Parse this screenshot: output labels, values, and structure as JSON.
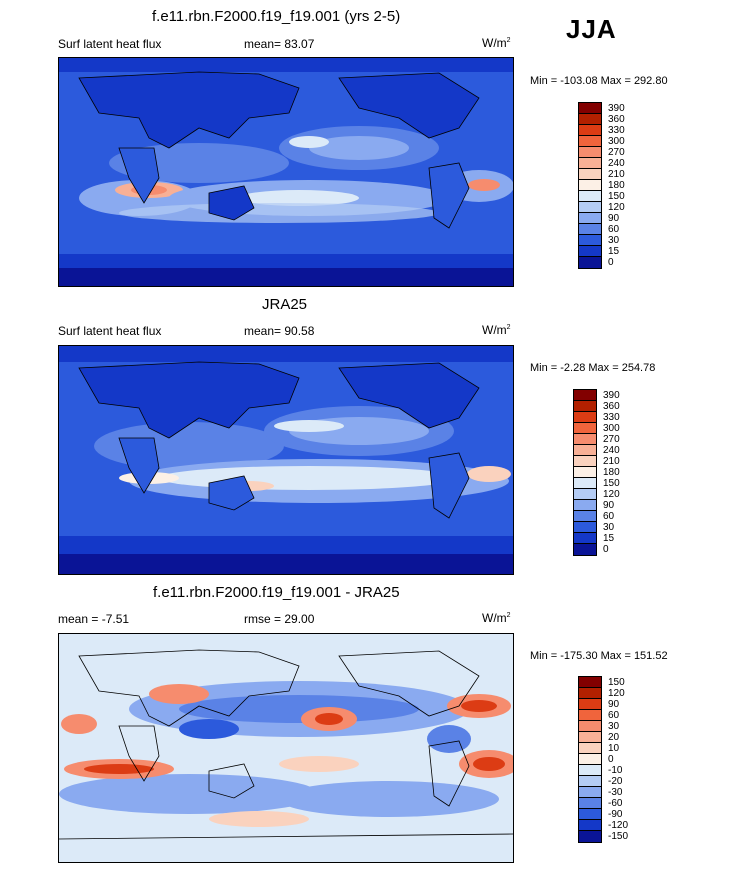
{
  "season": "JJA",
  "panels": [
    {
      "title": "f.e11.rbn.F2000.f19_f19.001 (yrs 2-5)",
      "left_label": "Surf latent heat flux",
      "mean_label": "mean=",
      "mean_value": "83.07",
      "units": "W/m",
      "units_sup": "2",
      "min_max": "Min = -103.08 Max = 292.80",
      "colorbar": [
        "390",
        "360",
        "330",
        "300",
        "270",
        "240",
        "210",
        "180",
        "150",
        "120",
        "90",
        "60",
        "30",
        "15",
        "0"
      ],
      "colors": [
        "#820000",
        "#b22000",
        "#dc3c14",
        "#f0643c",
        "#f68c6e",
        "#f8b096",
        "#fad2be",
        "#fcf0e6",
        "#dceaf8",
        "#b4ccf4",
        "#8aaaf0",
        "#5a82e6",
        "#2c5adc",
        "#1438c8",
        "#0a1496"
      ]
    },
    {
      "title": "JRA25",
      "left_label": "Surf latent heat flux",
      "mean_label": "mean=",
      "mean_value": "90.58",
      "units": "W/m",
      "units_sup": "2",
      "min_max": "Min = -2.28 Max = 254.78",
      "colorbar": [
        "390",
        "360",
        "330",
        "300",
        "270",
        "240",
        "210",
        "180",
        "150",
        "120",
        "90",
        "60",
        "30",
        "15",
        "0"
      ],
      "colors": [
        "#820000",
        "#b22000",
        "#dc3c14",
        "#f0643c",
        "#f68c6e",
        "#f8b096",
        "#fad2be",
        "#fcf0e6",
        "#dceaf8",
        "#b4ccf4",
        "#8aaaf0",
        "#5a82e6",
        "#2c5adc",
        "#1438c8",
        "#0a1496"
      ]
    },
    {
      "title": "f.e11.rbn.F2000.f19_f19.001 - JRA25",
      "left_label": "mean =  -7.51",
      "mean_label": "rmse =",
      "mean_value": "29.00",
      "units": "W/m",
      "units_sup": "2",
      "min_max": "Min = -175.30 Max = 151.52",
      "colorbar": [
        "150",
        "120",
        "90",
        "60",
        "30",
        "20",
        "10",
        "0",
        "-10",
        "-20",
        "-30",
        "-60",
        "-90",
        "-120",
        "-150"
      ],
      "colors": [
        "#820000",
        "#b22000",
        "#dc3c14",
        "#f0643c",
        "#f68c6e",
        "#f8b096",
        "#fad2be",
        "#fcf0e6",
        "#dceaf8",
        "#b4ccf4",
        "#8aaaf0",
        "#5a82e6",
        "#2c5adc",
        "#1438c8",
        "#0a1496"
      ]
    }
  ]
}
